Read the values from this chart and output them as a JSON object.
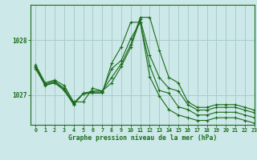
{
  "title": "Graphe pression niveau de la mer (hPa)",
  "bg_color": "#cce8e8",
  "grid_color": "#aacccc",
  "line_color": "#1a6b1a",
  "xlim": [
    -0.5,
    23
  ],
  "ylim": [
    1026.45,
    1028.65
  ],
  "yticks": [
    1027,
    1028
  ],
  "xticks": [
    0,
    1,
    2,
    3,
    4,
    5,
    6,
    7,
    8,
    9,
    10,
    11,
    12,
    13,
    14,
    15,
    16,
    17,
    18,
    19,
    20,
    21,
    22,
    23
  ],
  "series": [
    [
      1027.55,
      1027.22,
      1027.27,
      1027.17,
      1026.87,
      1026.87,
      1027.12,
      1027.07,
      1027.32,
      1027.57,
      1027.92,
      1028.42,
      1028.42,
      1027.82,
      1027.32,
      1027.22,
      1026.87,
      1026.77,
      1026.77,
      1026.82,
      1026.82,
      1026.82,
      1026.77,
      1026.72
    ],
    [
      1027.52,
      1027.2,
      1027.25,
      1027.12,
      1026.85,
      1027.02,
      1027.07,
      1027.07,
      1027.22,
      1027.52,
      1027.87,
      1028.38,
      1027.72,
      1027.32,
      1027.12,
      1027.07,
      1026.82,
      1026.72,
      1026.72,
      1026.77,
      1026.77,
      1026.77,
      1026.72,
      1026.67
    ],
    [
      1027.5,
      1027.18,
      1027.23,
      1027.1,
      1026.83,
      1027.03,
      1027.05,
      1027.05,
      1027.48,
      1027.63,
      1028.03,
      1028.33,
      1027.53,
      1027.08,
      1027.03,
      1026.78,
      1026.73,
      1026.63,
      1026.63,
      1026.68,
      1026.68,
      1026.68,
      1026.63,
      1026.58
    ],
    [
      1027.48,
      1027.17,
      1027.22,
      1027.08,
      1026.82,
      1027.02,
      1027.03,
      1027.03,
      1027.58,
      1027.88,
      1028.33,
      1028.33,
      1027.33,
      1026.98,
      1026.73,
      1026.63,
      1026.58,
      1026.53,
      1026.53,
      1026.58,
      1026.58,
      1026.58,
      1026.53,
      1026.48
    ]
  ]
}
